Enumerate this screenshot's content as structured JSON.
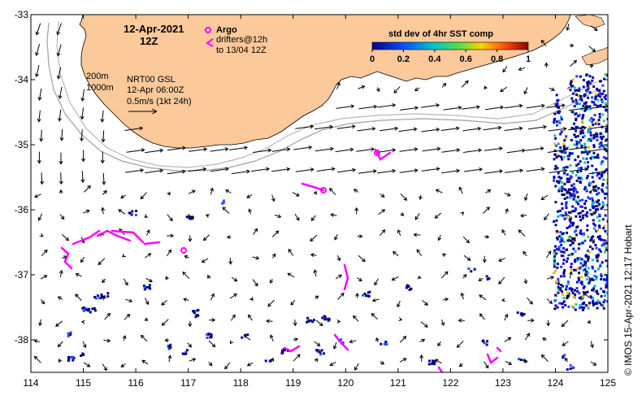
{
  "map": {
    "date_title": "12-Apr-2021",
    "time_title": "12Z",
    "argo_label": "Argo",
    "drifters_label_line1": "drifters@12h",
    "drifters_label_line2": "to 13/04 12Z",
    "colorbar_title": "std dev of 4hr SST comp",
    "colorbar_ticks": [
      "0",
      "0.2",
      "0.4",
      "0.6",
      "0.8",
      "1"
    ],
    "isobath_200": "200m",
    "isobath_1000": "1000m",
    "source_line1": "NRT00 GSL",
    "source_line2": "12-Apr 06:00Z",
    "scale_label": "0.5m/s (1kt 24h)",
    "credit": "© IMOS 15-Apr-2021 12:17 Hobart",
    "colors": {
      "land": "#fbc99a",
      "argo": "#ff00ff",
      "drifter": "#ff00ff",
      "sst_low": "#00008b",
      "sst_mid": "#00c8c8",
      "sst_high": "#ff0000"
    }
  },
  "x_axis": {
    "min": 114,
    "max": 125,
    "ticks": [
      "114",
      "115",
      "116",
      "117",
      "118",
      "119",
      "120",
      "121",
      "122",
      "123",
      "124",
      "125"
    ]
  },
  "y_axis": {
    "min": -38.5,
    "max": -33,
    "ticks": [
      "-33",
      "-34",
      "-35",
      "-36",
      "-37",
      "-38"
    ]
  }
}
